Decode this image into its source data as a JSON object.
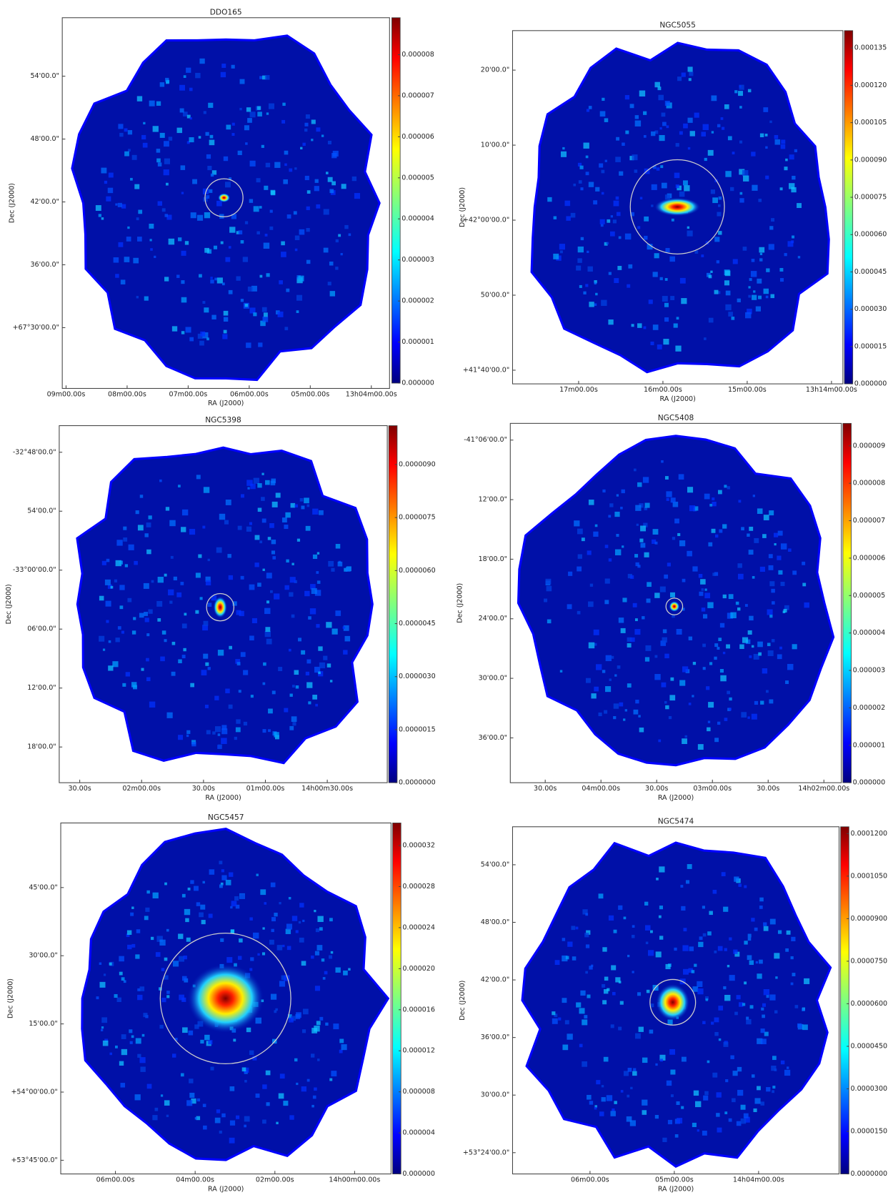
{
  "chart_data": [
    {
      "type": "image",
      "title": "DDO165",
      "xlabel": "RA (J2000)",
      "ylabel": "Dec (J2000)",
      "xtick_labels": [
        "09m00.00s",
        "08m00.00s",
        "07m00.00s",
        "06m00.00s",
        "05m00.00s",
        "13h04m00.00s"
      ],
      "ytick_labels": [
        "54'00.0\"",
        "48'00.0\"",
        "42'00.0\"",
        "36'00.0\"",
        "+67°30'00.0\""
      ],
      "clim": [
        0,
        8.9e-06
      ],
      "cticks": [
        {
          "value": 0,
          "label": "0.000000"
        },
        {
          "value": 1e-06,
          "label": "0.000001"
        },
        {
          "value": 2e-06,
          "label": "0.000002"
        },
        {
          "value": 3e-06,
          "label": "0.000003"
        },
        {
          "value": 4e-06,
          "label": "0.000004"
        },
        {
          "value": 5e-06,
          "label": "0.000005"
        },
        {
          "value": 6e-06,
          "label": "0.000006"
        },
        {
          "value": 7e-06,
          "label": "0.000007"
        },
        {
          "value": 8e-06,
          "label": "0.000008"
        }
      ]
    },
    {
      "type": "image",
      "title": "NGC5055",
      "xlabel": "RA (J2000)",
      "ylabel": "Dec (J2000)",
      "xtick_labels": [
        "17m00.00s",
        "16m00.00s",
        "15m00.00s",
        "13h14m00.00s"
      ],
      "ytick_labels": [
        "20'00.0\"",
        "10'00.0\"",
        "+42°00'00.0\"",
        "50'00.0\"",
        "+41°40'00.0\""
      ],
      "clim": [
        0,
        0.000142
      ],
      "cticks": [
        {
          "value": 0,
          "label": "0.000000"
        },
        {
          "value": 1.5e-05,
          "label": "0.000015"
        },
        {
          "value": 3e-05,
          "label": "0.000030"
        },
        {
          "value": 4.5e-05,
          "label": "0.000045"
        },
        {
          "value": 6e-05,
          "label": "0.000060"
        },
        {
          "value": 7.5e-05,
          "label": "0.000075"
        },
        {
          "value": 9e-05,
          "label": "0.000090"
        },
        {
          "value": 0.000105,
          "label": "0.000105"
        },
        {
          "value": 0.00012,
          "label": "0.000120"
        },
        {
          "value": 0.000135,
          "label": "0.000135"
        }
      ]
    },
    {
      "type": "image",
      "title": "NGC5398",
      "xlabel": "RA (J2000)",
      "ylabel": "Dec (J2000)",
      "xtick_labels": [
        "30.00s",
        "02m00.00s",
        "30.00s",
        "01m00.00s",
        "14h00m30.00s"
      ],
      "ytick_labels": [
        "-32°48'00.0\"",
        "54'00.0\"",
        "-33°00'00.0\"",
        "06'00.0\"",
        "12'00.0\"",
        "18'00.0\""
      ],
      "clim": [
        0,
        1.01e-05
      ],
      "cticks": [
        {
          "value": 0,
          "label": "0.0000000"
        },
        {
          "value": 1.5e-06,
          "label": "0.0000015"
        },
        {
          "value": 3e-06,
          "label": "0.0000030"
        },
        {
          "value": 4.5e-06,
          "label": "0.0000045"
        },
        {
          "value": 6e-06,
          "label": "0.0000060"
        },
        {
          "value": 7.5e-06,
          "label": "0.0000075"
        },
        {
          "value": 9e-06,
          "label": "0.0000090"
        }
      ]
    },
    {
      "type": "image",
      "title": "NGC5408",
      "xlabel": "RA (J2000)",
      "ylabel": "Dec (J2000)",
      "xtick_labels": [
        "30.00s",
        "04m00.00s",
        "30.00s",
        "03m00.00s",
        "30.00s",
        "14h02m00.00s"
      ],
      "ytick_labels": [
        "-41°06'00.0\"",
        "12'00.0\"",
        "18'00.0\"",
        "24'00.0\"",
        "30'00.0\"",
        "36'00.0\""
      ],
      "clim": [
        0,
        9.6e-06
      ],
      "cticks": [
        {
          "value": 0,
          "label": "0.000000"
        },
        {
          "value": 1e-06,
          "label": "0.000001"
        },
        {
          "value": 2e-06,
          "label": "0.000002"
        },
        {
          "value": 3e-06,
          "label": "0.000003"
        },
        {
          "value": 4e-06,
          "label": "0.000004"
        },
        {
          "value": 5e-06,
          "label": "0.000005"
        },
        {
          "value": 6e-06,
          "label": "0.000006"
        },
        {
          "value": 7e-06,
          "label": "0.000007"
        },
        {
          "value": 8e-06,
          "label": "0.000008"
        },
        {
          "value": 9e-06,
          "label": "0.000009"
        }
      ]
    },
    {
      "type": "image",
      "title": "NGC5457",
      "xlabel": "RA (J2000)",
      "ylabel": "Dec (J2000)",
      "xtick_labels": [
        "06m00.00s",
        "04m00.00s",
        "02m00.00s",
        "14h00m00.00s"
      ],
      "ytick_labels": [
        "45'00.0\"",
        "30'00.0\"",
        "15'00.0\"",
        "+54°00'00.0\"",
        "+53°45'00.0\""
      ],
      "clim": [
        0,
        3.42e-05
      ],
      "cticks": [
        {
          "value": 0,
          "label": "0.000000"
        },
        {
          "value": 4e-06,
          "label": "0.000004"
        },
        {
          "value": 8e-06,
          "label": "0.000008"
        },
        {
          "value": 1.2e-05,
          "label": "0.000012"
        },
        {
          "value": 1.6e-05,
          "label": "0.000016"
        },
        {
          "value": 2e-05,
          "label": "0.000020"
        },
        {
          "value": 2.4e-05,
          "label": "0.000024"
        },
        {
          "value": 2.8e-05,
          "label": "0.000028"
        },
        {
          "value": 3.2e-05,
          "label": "0.000032"
        }
      ]
    },
    {
      "type": "image",
      "title": "NGC5474",
      "xlabel": "RA (J2000)",
      "ylabel": "Dec (J2000)",
      "xtick_labels": [
        "06m00.00s",
        "05m00.00s",
        "14h04m00.00s"
      ],
      "ytick_labels": [
        "54'00.0\"",
        "48'00.0\"",
        "42'00.0\"",
        "36'00.0\"",
        "30'00.0\"",
        "+53°24'00.0\""
      ],
      "clim": [
        0,
        0.0001224
      ],
      "cticks": [
        {
          "value": 0,
          "label": "0.0000000"
        },
        {
          "value": 1.5e-05,
          "label": "0.0000150"
        },
        {
          "value": 3e-05,
          "label": "0.0000300"
        },
        {
          "value": 4.5e-05,
          "label": "0.0000450"
        },
        {
          "value": 6e-05,
          "label": "0.0000600"
        },
        {
          "value": 7.5e-05,
          "label": "0.0000750"
        },
        {
          "value": 9e-05,
          "label": "0.0000900"
        },
        {
          "value": 0.000105,
          "label": "0.0001050"
        },
        {
          "value": 0.00012,
          "label": "0.0001200"
        }
      ]
    }
  ]
}
